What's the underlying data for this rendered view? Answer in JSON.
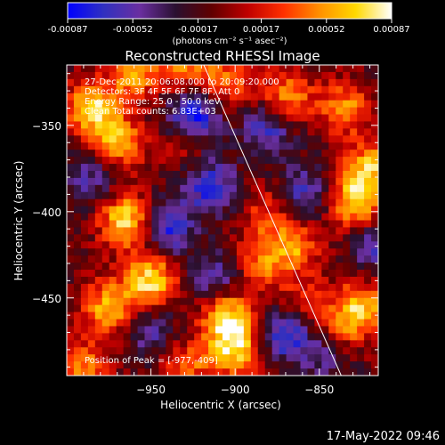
{
  "colorbar": {
    "ticks": [
      "-0.00087",
      "-0.00052",
      "-0.00017",
      "0.00017",
      "0.00052",
      "0.00087"
    ],
    "tick_values": [
      -0.00087,
      -0.00052,
      -0.00017,
      0.00017,
      0.00052,
      0.00087
    ],
    "range": [
      -0.00087,
      0.00087
    ],
    "units": "(photons cm⁻² s⁻¹ asec⁻²)",
    "colors": [
      "#0000ff",
      "#3030c0",
      "#6a2fa0",
      "#2a1030",
      "#600000",
      "#c00000",
      "#ff3000",
      "#ff9000",
      "#ffd800",
      "#ffffff"
    ]
  },
  "chart_data": {
    "type": "heatmap",
    "title": "Reconstructed RHESSI Image",
    "xlabel": "Heliocentric X (arcsec)",
    "ylabel": "Heliocentric Y (arcsec)",
    "xlim": [
      -1000,
      -815
    ],
    "ylim": [
      -495,
      -315
    ],
    "x_ticks": [
      -950,
      -900,
      -850
    ],
    "x_tick_labels": [
      "−950",
      "−900",
      "−850"
    ],
    "y_ticks": [
      -350,
      -400,
      -450
    ],
    "y_tick_labels": [
      "−350",
      "−400",
      "−450"
    ],
    "limb_line": {
      "x": [
        -920,
        -837
      ],
      "y": [
        -312,
        -495
      ]
    },
    "hotspots": [
      {
        "x": -985,
        "y": -340,
        "value": 0.0008
      },
      {
        "x": -970,
        "y": -360,
        "value": 0.0007
      },
      {
        "x": -965,
        "y": -405,
        "value": 0.00087
      },
      {
        "x": -950,
        "y": -440,
        "value": 0.00087
      },
      {
        "x": -975,
        "y": -455,
        "value": 0.0007
      },
      {
        "x": -905,
        "y": -460,
        "value": 0.00087
      },
      {
        "x": -900,
        "y": -480,
        "value": 0.0008
      },
      {
        "x": -885,
        "y": -430,
        "value": 0.0005
      },
      {
        "x": -828,
        "y": -395,
        "value": 0.0008
      },
      {
        "x": -820,
        "y": -375,
        "value": 0.0007
      },
      {
        "x": -835,
        "y": -340,
        "value": 0.0006
      },
      {
        "x": -870,
        "y": -335,
        "value": 0.0007
      },
      {
        "x": -905,
        "y": -325,
        "value": 0.0005
      },
      {
        "x": -930,
        "y": -315,
        "value": 0.0006
      },
      {
        "x": -960,
        "y": -320,
        "value": 0.0006
      },
      {
        "x": -825,
        "y": -455,
        "value": 0.0007
      },
      {
        "x": -838,
        "y": -470,
        "value": 0.0005
      },
      {
        "x": -865,
        "y": -420,
        "value": 0.0006
      },
      {
        "x": -860,
        "y": -455,
        "value": 0.0004
      },
      {
        "x": -990,
        "y": -490,
        "value": 0.0006
      },
      {
        "x": -930,
        "y": -490,
        "value": 0.0005
      },
      {
        "x": -880,
        "y": -400,
        "value": 0.0004
      },
      {
        "x": -930,
        "y": -360,
        "value": 0.0003
      }
    ],
    "coldspots": [
      {
        "x": -925,
        "y": -345,
        "value": -0.0008
      },
      {
        "x": -915,
        "y": -385,
        "value": -0.0006
      },
      {
        "x": -880,
        "y": -350,
        "value": -0.0006
      },
      {
        "x": -940,
        "y": -410,
        "value": -0.0006
      },
      {
        "x": -870,
        "y": -470,
        "value": -0.0007
      },
      {
        "x": -845,
        "y": -480,
        "value": -0.0005
      },
      {
        "x": -860,
        "y": -390,
        "value": -0.0005
      },
      {
        "x": -985,
        "y": -380,
        "value": -0.0004
      },
      {
        "x": -910,
        "y": -440,
        "value": -0.0005
      },
      {
        "x": -950,
        "y": -470,
        "value": -0.0004
      },
      {
        "x": -815,
        "y": -420,
        "value": -0.0005
      }
    ]
  },
  "annotations": [
    "27-Dec-2011 20:06:08.000 to 20:09:20.000",
    "Detectors: 3F 4F 5F 6F 7F 8F, Att 0",
    "Energy Range: 25.0 - 50.0 keV",
    "Clean    Total counts: 6.83E+03"
  ],
  "peak_label": "Position of Peak = [-977,-409]",
  "timestamp": "17-May-2022 09:46"
}
